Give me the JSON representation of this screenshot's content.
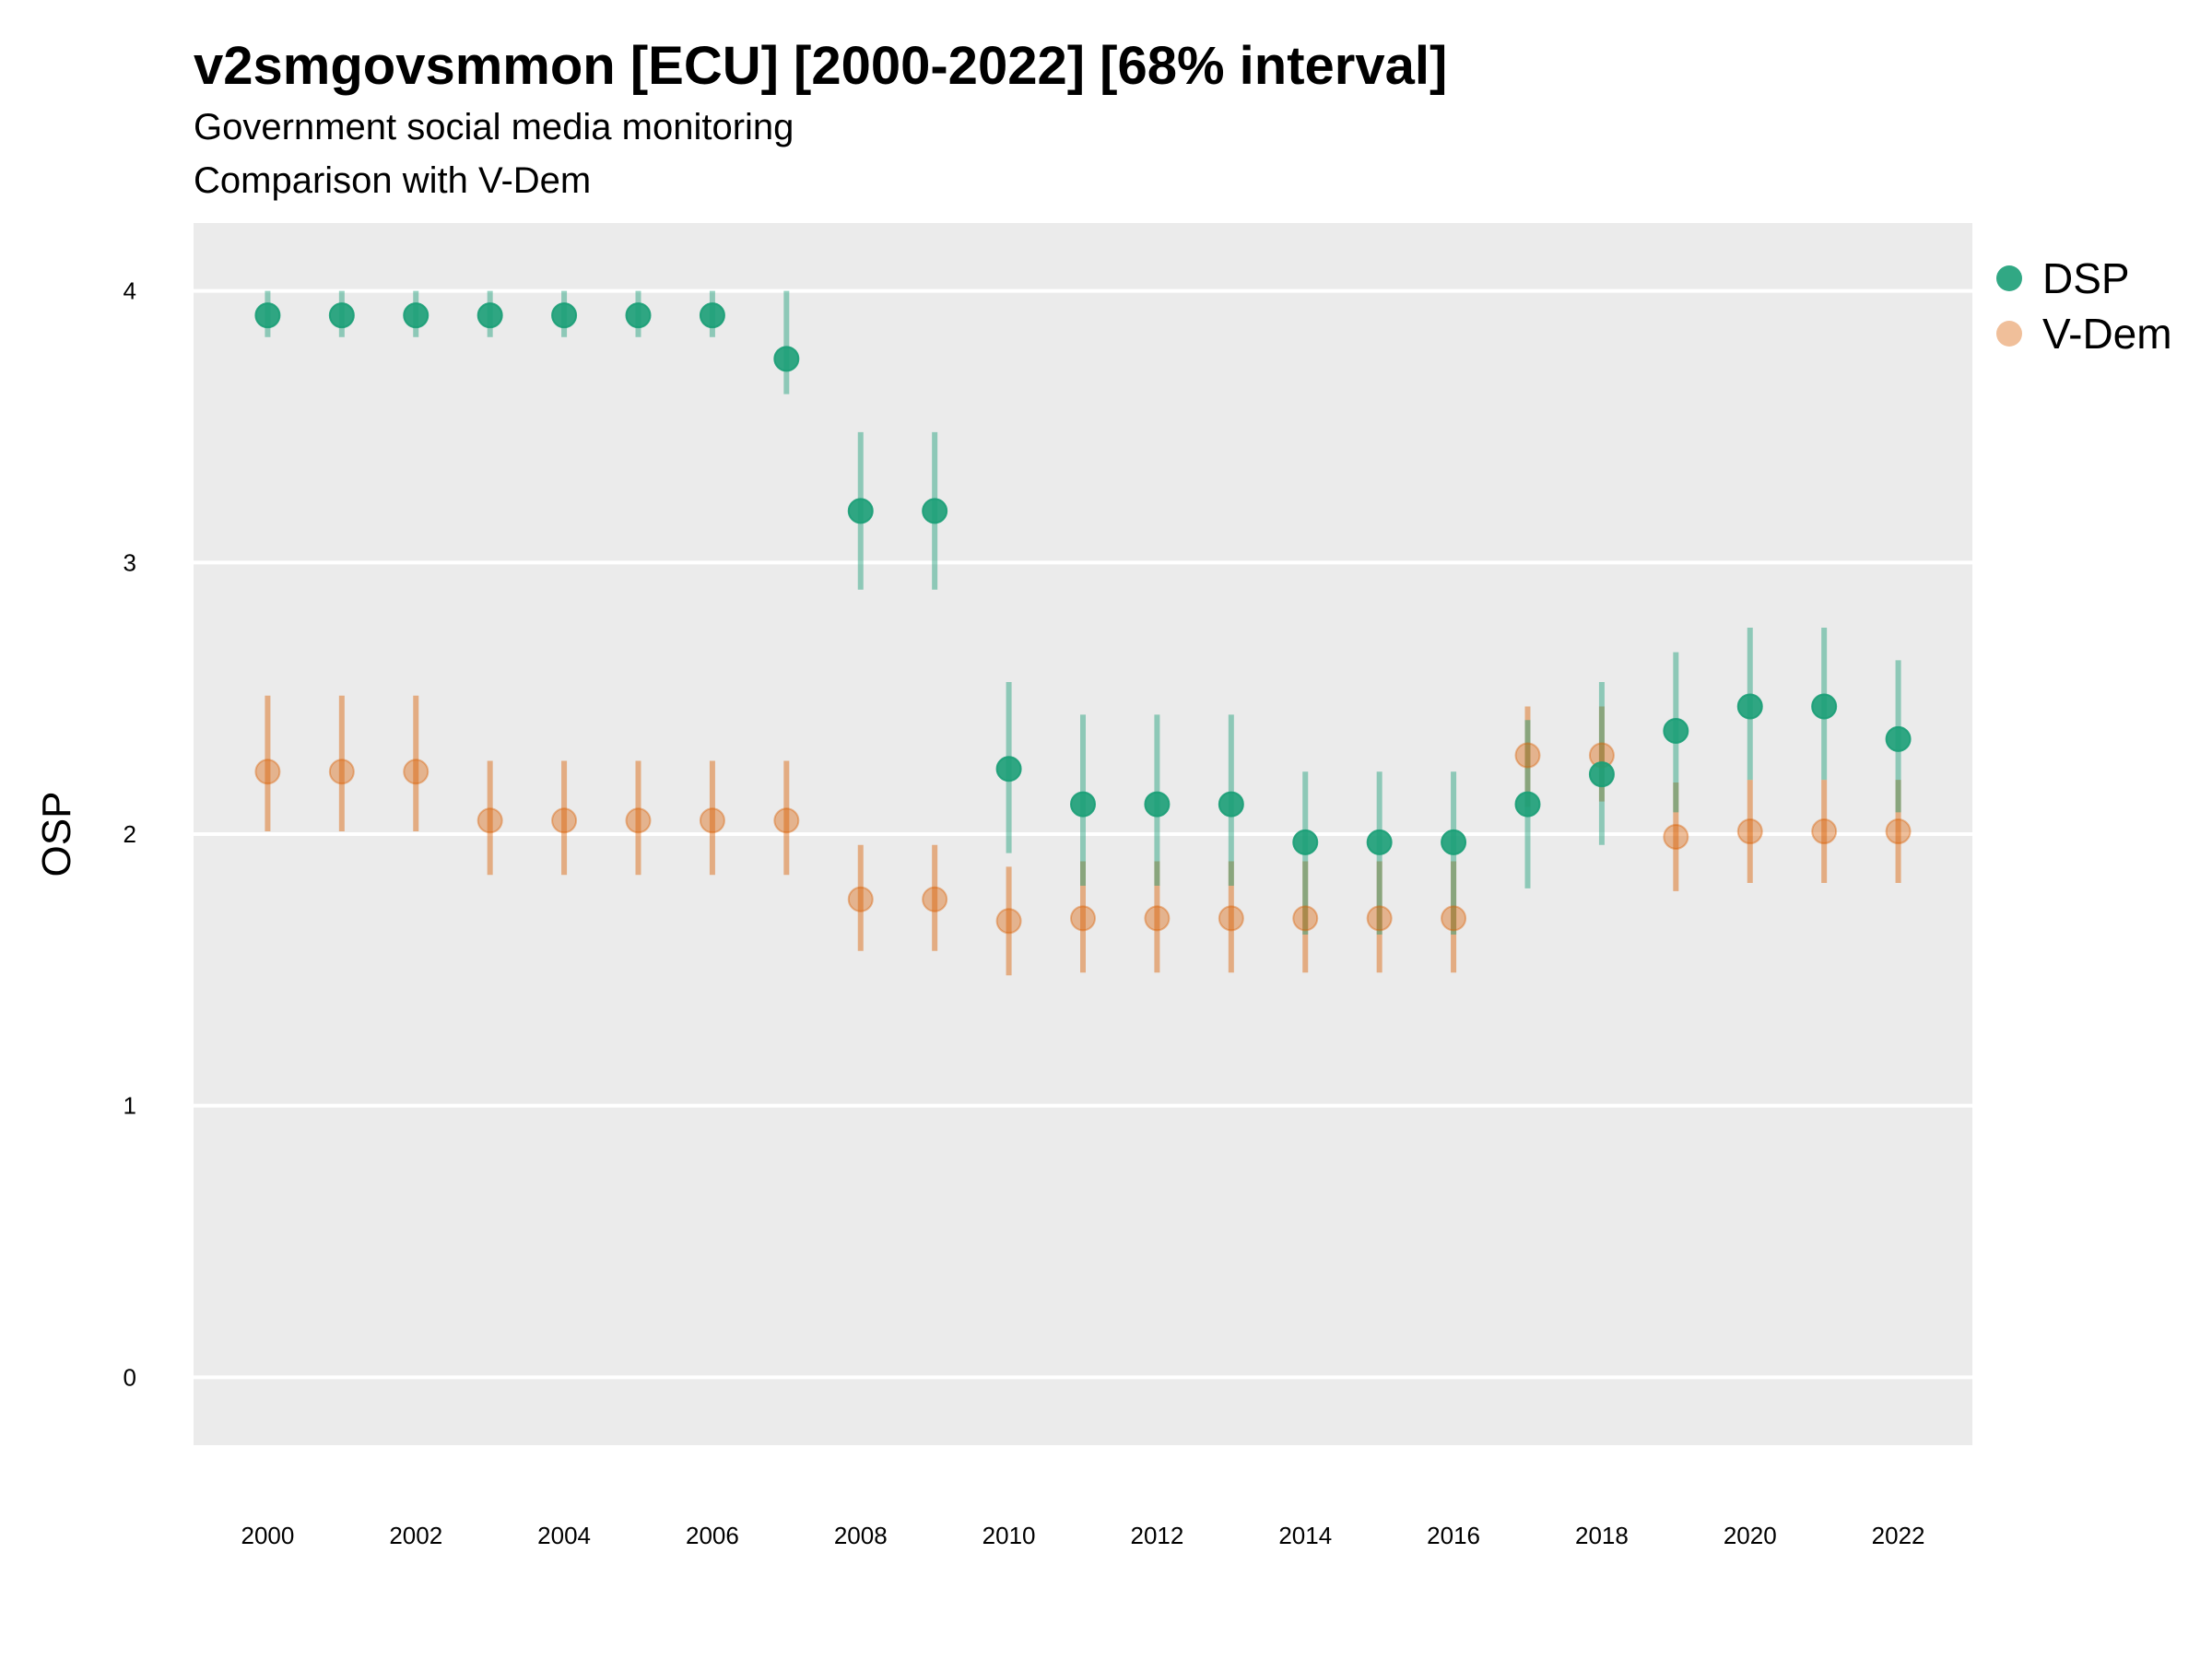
{
  "title": "v2smgovsmmon [ECU] [2000-2022] [68% interval]",
  "subtitle_line1": "Government social media monitoring",
  "subtitle_line2": "Comparison with V-Dem",
  "chart_data": {
    "type": "scatter",
    "xlabel": "",
    "ylabel": "OSP",
    "ylim": [
      -0.25,
      4.25
    ],
    "y_ticks": [
      0,
      1,
      2,
      3,
      4
    ],
    "x_ticks": [
      2000,
      2002,
      2004,
      2006,
      2008,
      2010,
      2012,
      2014,
      2016,
      2018,
      2020,
      2022
    ],
    "x": [
      2000,
      2001,
      2002,
      2003,
      2004,
      2005,
      2006,
      2007,
      2008,
      2009,
      2010,
      2011,
      2012,
      2013,
      2014,
      2015,
      2016,
      2017,
      2018,
      2019,
      2020,
      2021,
      2022
    ],
    "grid": true,
    "legend_position": "right",
    "series": [
      {
        "name": "DSP",
        "color": "#1b9e77",
        "values": [
          3.91,
          3.91,
          3.91,
          3.91,
          3.91,
          3.91,
          3.91,
          3.75,
          3.19,
          3.19,
          2.24,
          2.11,
          2.11,
          2.11,
          1.97,
          1.97,
          1.97,
          2.11,
          2.22,
          2.38,
          2.47,
          2.47,
          2.35
        ],
        "lower": [
          3.83,
          3.83,
          3.83,
          3.83,
          3.83,
          3.83,
          3.83,
          3.62,
          2.9,
          2.9,
          1.93,
          1.81,
          1.81,
          1.81,
          1.63,
          1.63,
          1.63,
          1.8,
          1.96,
          2.08,
          2.2,
          2.2,
          2.08
        ],
        "upper": [
          4.0,
          4.0,
          4.0,
          4.0,
          4.0,
          4.0,
          4.0,
          4.0,
          3.48,
          3.48,
          2.56,
          2.44,
          2.44,
          2.44,
          2.23,
          2.23,
          2.23,
          2.42,
          2.56,
          2.67,
          2.76,
          2.76,
          2.64
        ]
      },
      {
        "name": "V-Dem",
        "color": "#d95f02",
        "values": [
          2.23,
          2.23,
          2.23,
          2.05,
          2.05,
          2.05,
          2.05,
          2.05,
          1.76,
          1.76,
          1.68,
          1.69,
          1.69,
          1.69,
          1.69,
          1.69,
          1.69,
          2.29,
          2.29,
          1.99,
          2.01,
          2.01,
          2.01
        ],
        "lower": [
          2.01,
          2.01,
          2.01,
          1.85,
          1.85,
          1.85,
          1.85,
          1.85,
          1.57,
          1.57,
          1.48,
          1.49,
          1.49,
          1.49,
          1.49,
          1.49,
          1.49,
          2.1,
          2.12,
          1.79,
          1.82,
          1.82,
          1.82
        ],
        "upper": [
          2.51,
          2.51,
          2.51,
          2.27,
          2.27,
          2.27,
          2.27,
          2.27,
          1.96,
          1.96,
          1.88,
          1.9,
          1.9,
          1.9,
          1.9,
          1.9,
          1.9,
          2.47,
          2.47,
          2.19,
          2.2,
          2.2,
          2.2
        ]
      }
    ]
  }
}
